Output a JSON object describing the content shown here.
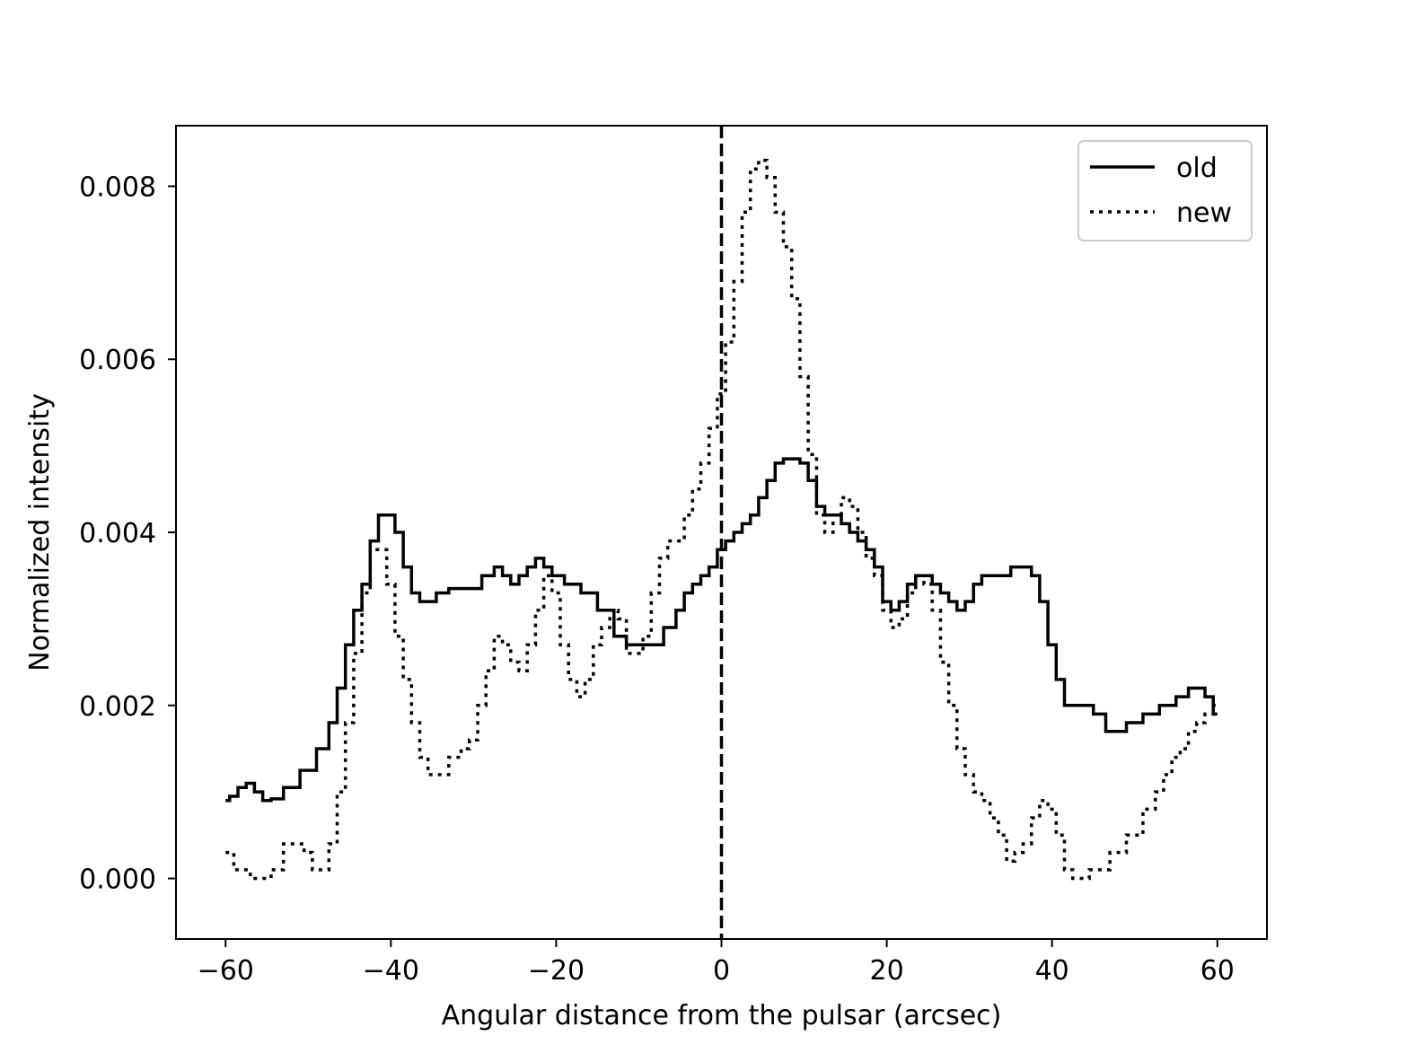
{
  "chart_data": {
    "type": "line",
    "xlabel": "Angular distance from the pulsar (arcsec)",
    "ylabel": "Normalized intensity",
    "xlim": [
      -66,
      66
    ],
    "ylim": [
      -0.0007,
      0.0087
    ],
    "xticks": [
      -60,
      -40,
      -20,
      0,
      20,
      40,
      60
    ],
    "xtick_labels": [
      "−60",
      "−40",
      "−20",
      "0",
      "20",
      "40",
      "60"
    ],
    "yticks": [
      0.0,
      0.002,
      0.004,
      0.006,
      0.008
    ],
    "ytick_labels": [
      "0.000",
      "0.002",
      "0.004",
      "0.006",
      "0.008"
    ],
    "grid": false,
    "legend_position": "top-right",
    "reference_line": {
      "x": 0,
      "style": "dashed",
      "color": "#000000"
    },
    "series": [
      {
        "name": "old",
        "style": "solid",
        "color": "#000000",
        "x": [
          -60,
          -59,
          -58,
          -57,
          -56,
          -55,
          -54,
          -52,
          -50,
          -48,
          -47,
          -46,
          -45,
          -44,
          -43,
          -42,
          -41,
          -40,
          -39,
          -38,
          -37,
          -36,
          -35,
          -34,
          -32,
          -30,
          -28,
          -27,
          -26,
          -25,
          -24,
          -23,
          -22,
          -21,
          -20,
          -18,
          -16,
          -14,
          -12,
          -11,
          -10,
          -9,
          -8,
          -6,
          -5,
          -4,
          -3,
          -2,
          -1,
          0,
          1,
          2,
          3,
          4,
          5,
          6,
          7,
          8,
          9,
          10,
          11,
          12,
          13,
          14,
          15,
          16,
          17,
          18,
          19,
          20,
          21,
          22,
          23,
          24,
          25,
          26,
          27,
          28,
          29,
          30,
          31,
          32,
          34,
          36,
          37,
          38,
          39,
          40,
          41,
          42,
          44,
          46,
          47,
          48,
          50,
          52,
          54,
          56,
          57,
          58,
          59,
          60
        ],
        "y": [
          0.0009,
          0.00095,
          0.00105,
          0.0011,
          0.001,
          0.0009,
          0.00092,
          0.00105,
          0.00125,
          0.0015,
          0.0018,
          0.0022,
          0.0027,
          0.0031,
          0.0034,
          0.0039,
          0.0042,
          0.0042,
          0.004,
          0.0036,
          0.0033,
          0.0032,
          0.0032,
          0.0033,
          0.00335,
          0.00335,
          0.0035,
          0.0036,
          0.0035,
          0.0034,
          0.0035,
          0.0036,
          0.0037,
          0.0036,
          0.0035,
          0.0034,
          0.0033,
          0.0031,
          0.0028,
          0.0027,
          0.0027,
          0.0027,
          0.0027,
          0.0029,
          0.0031,
          0.0033,
          0.0034,
          0.0035,
          0.0036,
          0.0038,
          0.0039,
          0.004,
          0.0041,
          0.0042,
          0.0044,
          0.0046,
          0.0048,
          0.00485,
          0.00485,
          0.0048,
          0.0046,
          0.0043,
          0.0042,
          0.0042,
          0.0041,
          0.004,
          0.0039,
          0.0038,
          0.0036,
          0.0032,
          0.0031,
          0.0032,
          0.0034,
          0.0035,
          0.0035,
          0.0034,
          0.0033,
          0.0032,
          0.0031,
          0.0032,
          0.0034,
          0.0035,
          0.0035,
          0.0036,
          0.0036,
          0.0035,
          0.0032,
          0.0027,
          0.0023,
          0.002,
          0.002,
          0.0019,
          0.0017,
          0.0017,
          0.0018,
          0.0019,
          0.002,
          0.0021,
          0.0022,
          0.0022,
          0.0021,
          0.0019
        ]
      },
      {
        "name": "new",
        "style": "dotted",
        "color": "#000000",
        "x": [
          -60,
          -58,
          -56,
          -55,
          -54,
          -52,
          -51,
          -50,
          -49,
          -48,
          -47,
          -46,
          -45,
          -44,
          -43,
          -42,
          -41,
          -40,
          -39,
          -38,
          -37,
          -36,
          -35,
          -34,
          -32,
          -31,
          -30,
          -29,
          -28,
          -27,
          -26,
          -25,
          -24,
          -23,
          -22,
          -21,
          -20,
          -19,
          -18,
          -17,
          -16,
          -15,
          -14,
          -13,
          -12,
          -11,
          -10,
          -9,
          -8,
          -7,
          -6,
          -5,
          -4,
          -3,
          -2,
          -1,
          0,
          1,
          2,
          3,
          4,
          5,
          6,
          7,
          8,
          9,
          10,
          11,
          12,
          13,
          14,
          15,
          16,
          17,
          18,
          19,
          20,
          21,
          22,
          23,
          24,
          25,
          26,
          27,
          28,
          29,
          30,
          31,
          32,
          33,
          34,
          35,
          36,
          37,
          38,
          39,
          40,
          41,
          42,
          43,
          44,
          45,
          46,
          48,
          50,
          52,
          53,
          54,
          55,
          56,
          57,
          58,
          59,
          60
        ],
        "y": [
          0.0003,
          0.0001,
          0.0,
          0.0,
          0.0001,
          0.0004,
          0.0004,
          0.0003,
          0.0001,
          0.0001,
          0.0004,
          0.001,
          0.0018,
          0.0026,
          0.0033,
          0.0038,
          0.0038,
          0.0034,
          0.0028,
          0.0023,
          0.0018,
          0.0014,
          0.0012,
          0.0012,
          0.0014,
          0.0015,
          0.0016,
          0.002,
          0.0024,
          0.0028,
          0.0027,
          0.0025,
          0.0024,
          0.0027,
          0.0031,
          0.0035,
          0.0033,
          0.0027,
          0.0023,
          0.0021,
          0.0023,
          0.0027,
          0.0029,
          0.0031,
          0.003,
          0.0026,
          0.0026,
          0.0028,
          0.0033,
          0.0037,
          0.0039,
          0.0039,
          0.0042,
          0.0045,
          0.0048,
          0.0052,
          0.0056,
          0.0062,
          0.0069,
          0.0077,
          0.0082,
          0.0083,
          0.0081,
          0.0077,
          0.0073,
          0.0067,
          0.0058,
          0.0049,
          0.0042,
          0.004,
          0.0042,
          0.0044,
          0.0043,
          0.004,
          0.0037,
          0.0035,
          0.0031,
          0.0029,
          0.003,
          0.0033,
          0.0035,
          0.0034,
          0.0031,
          0.0025,
          0.002,
          0.0015,
          0.0012,
          0.001,
          0.0009,
          0.0007,
          0.0005,
          0.0002,
          0.0003,
          0.0004,
          0.0007,
          0.0009,
          0.0008,
          0.0005,
          0.0001,
          0.0,
          0.0,
          0.0001,
          0.0001,
          0.0003,
          0.0005,
          0.0008,
          0.001,
          0.0012,
          0.0014,
          0.0015,
          0.0017,
          0.0018,
          0.0019,
          0.002
        ]
      }
    ]
  }
}
